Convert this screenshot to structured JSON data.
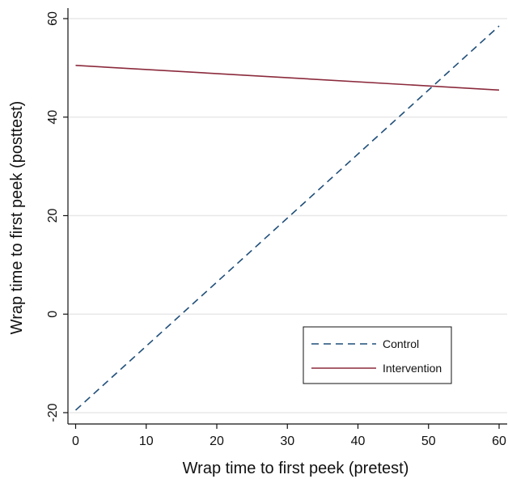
{
  "chart_data": {
    "type": "line",
    "xlabel": "Wrap time to first peek (pretest)",
    "ylabel": "Wrap time to first peek (posttest)",
    "xlim": [
      0,
      60
    ],
    "ylim": [
      -20,
      60
    ],
    "x_ticks": [
      0,
      10,
      20,
      30,
      40,
      50,
      60
    ],
    "y_ticks": [
      -20,
      0,
      20,
      40,
      60
    ],
    "grid": "horizontal",
    "legend_position": "bottom-right",
    "series": [
      {
        "name": "Control",
        "style": "dashed",
        "color": "#1f4e79",
        "x": [
          0,
          60
        ],
        "y": [
          -19.5,
          58.5
        ]
      },
      {
        "name": "Intervention",
        "style": "solid",
        "color": "#8b2a3c",
        "x": [
          0,
          60
        ],
        "y": [
          50.5,
          45.5
        ]
      }
    ]
  }
}
